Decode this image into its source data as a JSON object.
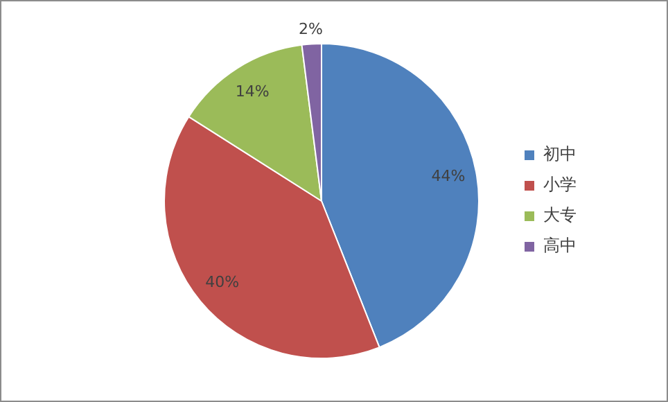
{
  "chart_data": {
    "type": "pie",
    "categories": [
      "初中",
      "小学",
      "大专",
      "高中"
    ],
    "values": [
      44,
      40,
      14,
      2
    ],
    "colors": [
      "#4f81bd",
      "#c0504d",
      "#9bbb59",
      "#8064a2"
    ],
    "value_labels": [
      "44%",
      "40%",
      "14%",
      "2%"
    ],
    "legend": "right"
  }
}
